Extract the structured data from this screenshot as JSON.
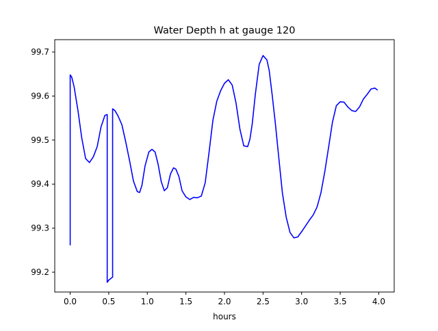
{
  "chart_data": {
    "type": "line",
    "title": "Water Depth h at gauge 120",
    "xlabel": "hours",
    "ylabel": "",
    "xlim": [
      -0.2,
      4.2
    ],
    "ylim": [
      99.155,
      99.728
    ],
    "xticks": [
      0.0,
      0.5,
      1.0,
      1.5,
      2.0,
      2.5,
      3.0,
      3.5,
      4.0
    ],
    "xtick_labels": [
      "0.0",
      "0.5",
      "1.0",
      "1.5",
      "2.0",
      "2.5",
      "3.0",
      "3.5",
      "4.0"
    ],
    "yticks": [
      99.2,
      99.3,
      99.4,
      99.5,
      99.6,
      99.7
    ],
    "ytick_labels": [
      "99.2",
      "99.3",
      "99.4",
      "99.5",
      "99.6",
      "99.7"
    ],
    "grid": false,
    "colors": {
      "line": "#0000ff",
      "axes": "#000000",
      "background": "#ffffff"
    },
    "series": [
      {
        "x": [
          0.0,
          0.0,
          0.02,
          0.05,
          0.1,
          0.15,
          0.2,
          0.25,
          0.3,
          0.35,
          0.4,
          0.45,
          0.48,
          0.48,
          0.5,
          0.55,
          0.55,
          0.58,
          0.62,
          0.67,
          0.72,
          0.77,
          0.82,
          0.87,
          0.9,
          0.93,
          0.97,
          1.02,
          1.06,
          1.1,
          1.14,
          1.18,
          1.22,
          1.26,
          1.3,
          1.34,
          1.37,
          1.41,
          1.45,
          1.5,
          1.55,
          1.6,
          1.65,
          1.7,
          1.75,
          1.8,
          1.85,
          1.9,
          1.95,
          2.0,
          2.05,
          2.1,
          2.15,
          2.2,
          2.25,
          2.3,
          2.33,
          2.36,
          2.4,
          2.45,
          2.5,
          2.55,
          2.58,
          2.62,
          2.66,
          2.7,
          2.75,
          2.8,
          2.85,
          2.9,
          2.95,
          3.0,
          3.05,
          3.1,
          3.15,
          3.2,
          3.25,
          3.3,
          3.35,
          3.4,
          3.45,
          3.5,
          3.55,
          3.6,
          3.65,
          3.7,
          3.75,
          3.8,
          3.85,
          3.9,
          3.95,
          3.98
        ],
        "y": [
          99.262,
          99.648,
          99.643,
          99.622,
          99.568,
          99.505,
          99.458,
          99.449,
          99.462,
          99.485,
          99.53,
          99.556,
          99.558,
          99.177,
          99.182,
          99.189,
          99.571,
          99.567,
          99.555,
          99.535,
          99.496,
          99.453,
          99.407,
          99.383,
          99.381,
          99.397,
          99.441,
          99.473,
          99.479,
          99.473,
          99.445,
          99.406,
          99.385,
          99.392,
          99.423,
          99.437,
          99.434,
          99.417,
          99.385,
          99.371,
          99.365,
          99.37,
          99.369,
          99.373,
          99.403,
          99.472,
          99.545,
          99.588,
          99.612,
          99.629,
          99.637,
          99.625,
          99.584,
          99.525,
          99.487,
          99.485,
          99.502,
          99.537,
          99.604,
          99.672,
          99.692,
          99.682,
          99.658,
          99.6,
          99.537,
          99.467,
          99.381,
          99.325,
          99.29,
          99.278,
          99.28,
          99.292,
          99.305,
          99.318,
          99.33,
          99.348,
          99.38,
          99.428,
          99.484,
          99.541,
          99.578,
          99.587,
          99.586,
          99.575,
          99.567,
          99.565,
          99.575,
          99.593,
          99.604,
          99.616,
          99.618,
          99.614
        ]
      }
    ]
  }
}
